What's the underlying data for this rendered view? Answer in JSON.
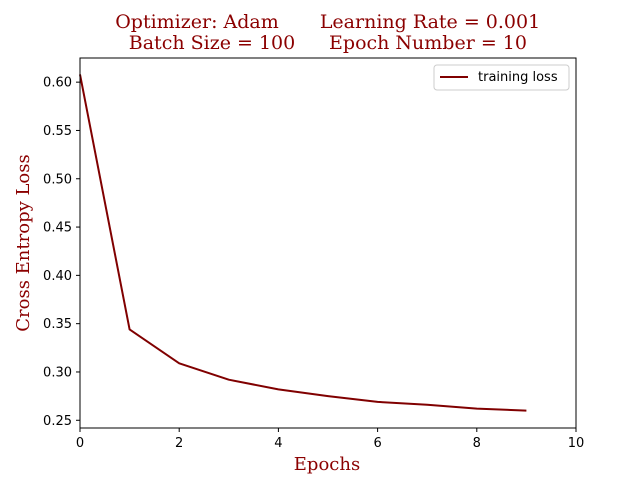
{
  "chart_data": {
    "type": "line",
    "title_lines": [
      [
        "Optimizer: Adam",
        "Learning Rate = 0.001"
      ],
      [
        "Batch Size = 100",
        "Epoch Number = 10"
      ]
    ],
    "xlabel": "Epochs",
    "ylabel": "Cross Entropy Loss",
    "xlim": [
      0,
      10
    ],
    "ylim": [
      0.242,
      0.625
    ],
    "x_ticks": [
      0,
      2,
      4,
      6,
      8,
      10
    ],
    "y_ticks": [
      0.25,
      0.3,
      0.35,
      0.4,
      0.45,
      0.5,
      0.55,
      0.6
    ],
    "grid": false,
    "legend_position": "top-right",
    "series": [
      {
        "name": "training loss",
        "color": "#800000",
        "x": [
          0,
          1,
          2,
          3,
          4,
          5,
          6,
          7,
          8,
          9
        ],
        "y": [
          0.608,
          0.344,
          0.309,
          0.292,
          0.282,
          0.275,
          0.269,
          0.266,
          0.262,
          0.26
        ]
      }
    ]
  }
}
